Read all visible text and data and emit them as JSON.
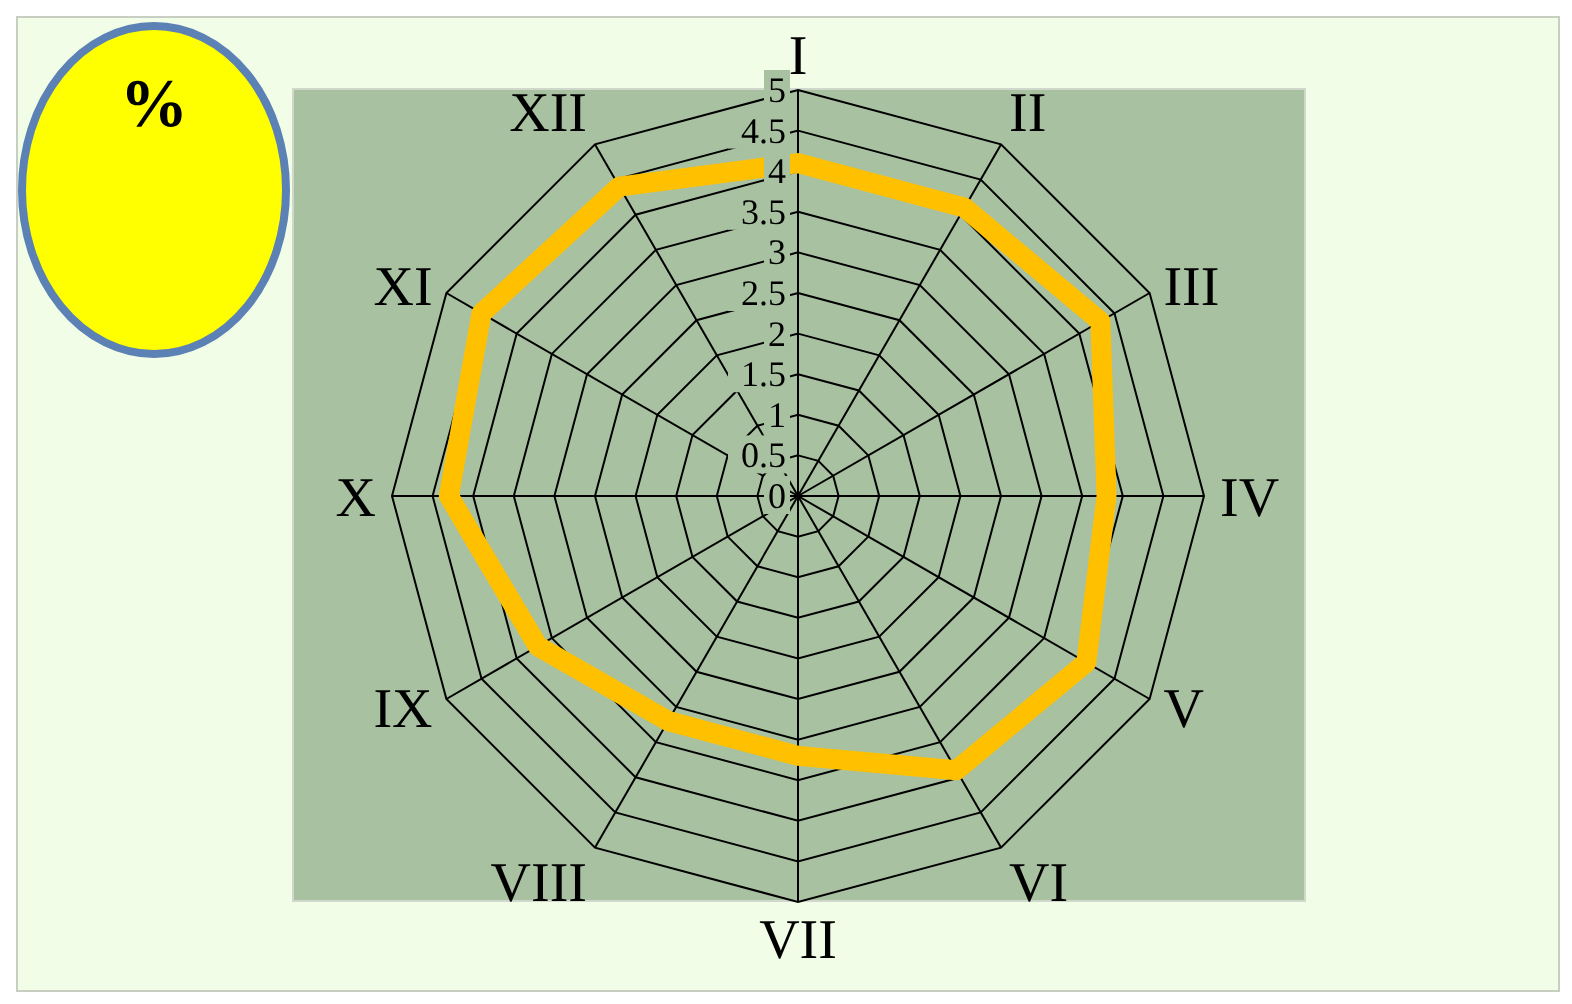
{
  "chart_data": {
    "type": "radar",
    "annotations": [
      "%"
    ],
    "categories": [
      "I",
      "II",
      "III",
      "IV",
      "V",
      "VI",
      "VII",
      "VIII",
      "IX",
      "X",
      "XI",
      "XII"
    ],
    "series": [
      {
        "color": "#ffc000",
        "values": [
          4.1,
          4.1,
          4.3,
          3.8,
          4.1,
          3.9,
          3.2,
          3.2,
          3.7,
          4.3,
          4.5,
          4.4
        ]
      }
    ],
    "ylim": [
      0,
      5
    ],
    "yticks": [
      0,
      0.5,
      1,
      1.5,
      2,
      2.5,
      3,
      3.5,
      4,
      4.5,
      5
    ],
    "grid": true,
    "marker": "none",
    "line_style": "solid"
  }
}
